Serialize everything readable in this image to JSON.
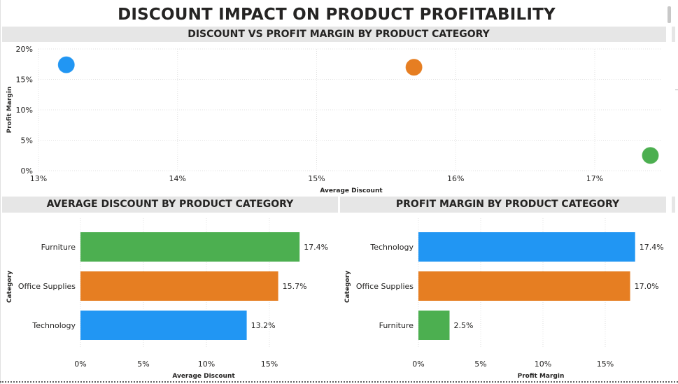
{
  "dashboard": {
    "title": "DISCOUNT IMPACT ON PRODUCT PROFITABILITY"
  },
  "colors": {
    "technology": "#2196F3",
    "office_supplies": "#E67E22",
    "furniture": "#4CAF50",
    "header_bg": "#e6e6e6",
    "gridline": "#e2e2e2",
    "text": "#252423"
  },
  "chart_data": [
    {
      "type": "scatter",
      "title": "DISCOUNT VS PROFIT MARGIN BY PRODUCT CATEGORY",
      "xlabel": "Average Discount",
      "ylabel": "Profit Margin",
      "xlim": [
        13.0,
        17.4
      ],
      "ylim": [
        0,
        20
      ],
      "xticks": [
        "13%",
        "14%",
        "15%",
        "16%",
        "17%"
      ],
      "yticks": [
        "0%",
        "5%",
        "10%",
        "15%",
        "20%"
      ],
      "grid": true,
      "points": [
        {
          "category": "Technology",
          "x": 13.2,
          "y": 17.4,
          "color": "#2196F3"
        },
        {
          "category": "Office Supplies",
          "x": 15.7,
          "y": 17.0,
          "color": "#E67E22"
        },
        {
          "category": "Furniture",
          "x": 17.4,
          "y": 2.5,
          "color": "#4CAF50"
        }
      ]
    },
    {
      "type": "bar",
      "orientation": "horizontal",
      "title": "AVERAGE DISCOUNT BY PRODUCT CATEGORY",
      "xlabel": "Average Discount",
      "ylabel": "Category",
      "xlim": [
        0,
        17.5
      ],
      "xticks": [
        "0%",
        "5%",
        "10%",
        "15%"
      ],
      "categories": [
        "Furniture",
        "Office Supplies",
        "Technology"
      ],
      "values": [
        17.4,
        15.7,
        13.2
      ],
      "labels": [
        "17.4%",
        "15.7%",
        "13.2%"
      ],
      "colors": [
        "#4CAF50",
        "#E67E22",
        "#2196F3"
      ]
    },
    {
      "type": "bar",
      "orientation": "horizontal",
      "title": "PROFIT MARGIN BY PRODUCT CATEGORY",
      "xlabel": "Profit Margin",
      "ylabel": "Category",
      "xlim": [
        0,
        17.5
      ],
      "xticks": [
        "0%",
        "5%",
        "10%",
        "15%"
      ],
      "categories": [
        "Technology",
        "Office Supplies",
        "Furniture"
      ],
      "values": [
        17.4,
        17.0,
        2.5
      ],
      "labels": [
        "17.4%",
        "17.0%",
        "2.5%"
      ],
      "colors": [
        "#2196F3",
        "#E67E22",
        "#4CAF50"
      ]
    }
  ]
}
